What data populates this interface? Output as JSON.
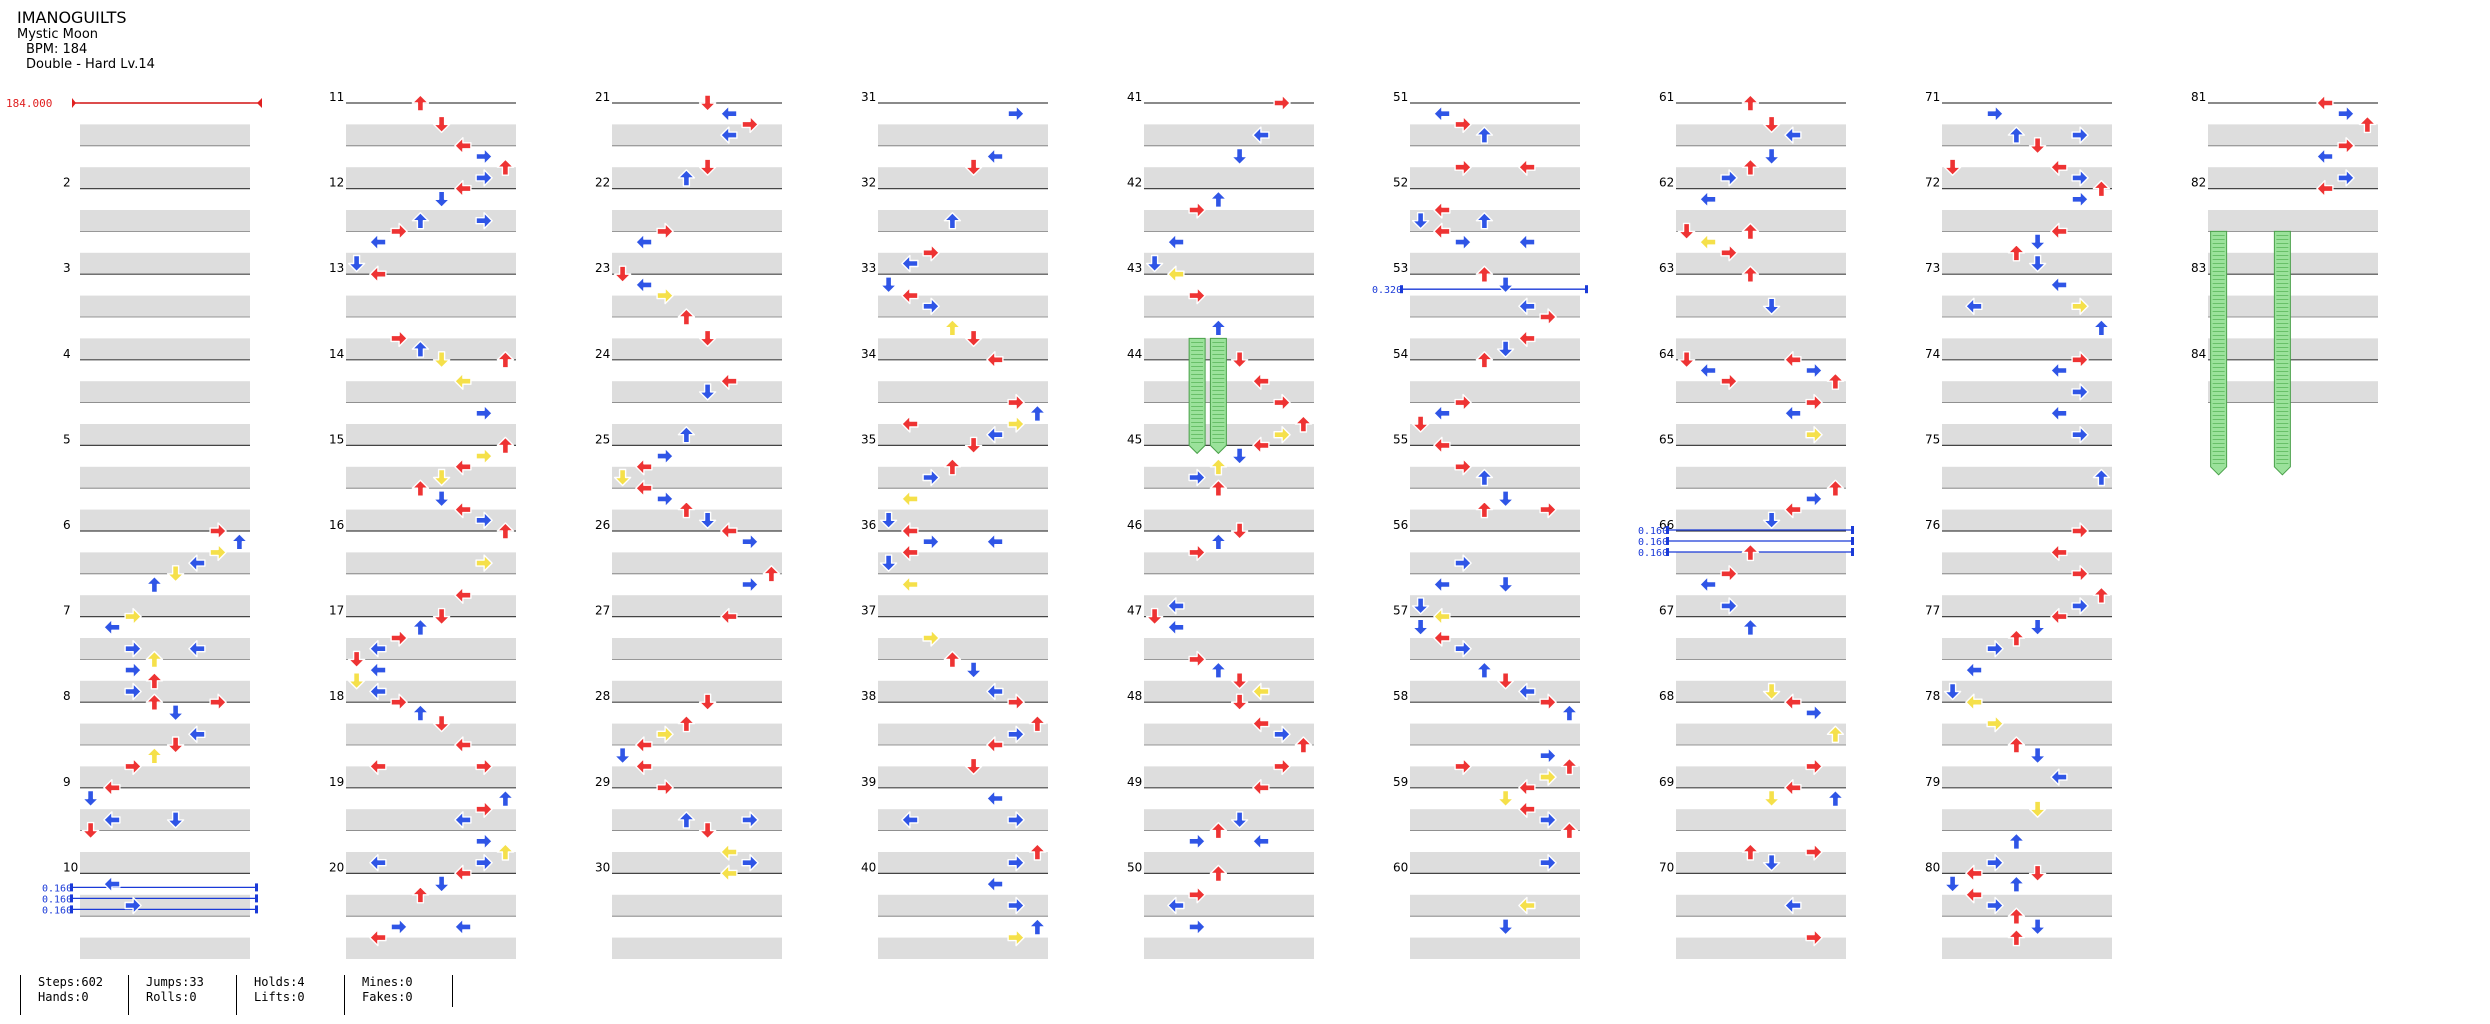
{
  "song": {
    "title": "IMANOGUILTS",
    "subtitle": "Mystic Moon",
    "bpm_text": "BPM: 184",
    "difficulty_text": "Double - Hard  Lv.14"
  },
  "measure_numbers": [
    "",
    "2",
    "3",
    "4",
    "5",
    "6",
    "7",
    "8",
    "9",
    "10",
    "11",
    "12",
    "13",
    "14",
    "15",
    "16",
    "17",
    "18",
    "19",
    "20",
    "21",
    "22",
    "23",
    "24",
    "25",
    "26",
    "27",
    "28",
    "29",
    "30",
    "31",
    "32",
    "33",
    "34",
    "35",
    "36",
    "37",
    "38",
    "39",
    "40",
    "41",
    "42",
    "43",
    "44",
    "45",
    "46",
    "47",
    "48",
    "49",
    "50",
    "51",
    "52",
    "53",
    "54",
    "55",
    "56",
    "57",
    "58",
    "59",
    "60",
    "61",
    "62",
    "63",
    "64",
    "65",
    "66",
    "67",
    "68",
    "69",
    "70",
    "71",
    "72",
    "73",
    "74",
    "75",
    "76",
    "77",
    "78",
    "79",
    "80",
    "81",
    "82",
    "83",
    "84"
  ],
  "speed_labels": {
    "start_bpm": "184.000",
    "stop_160": "0.160",
    "stop_320": "0.320"
  },
  "colors": {
    "red": "#ee3333",
    "blue": "#2f55e6",
    "yellow": "#f5e04a",
    "hold_green": "#9be29b",
    "bpm_red": "#e02020",
    "stop_blue": "#1a3ad8",
    "band_gray": "#dddddd"
  },
  "footer": {
    "blocks": [
      {
        "l1": "Steps:602",
        "l2": "Hands:0"
      },
      {
        "l1": "Jumps:33",
        "l2": "Rolls:0"
      },
      {
        "l1": "Holds:4",
        "l2": "Lifts:0"
      },
      {
        "l1": "Mines:0",
        "l2": "Fakes:0"
      }
    ]
  }
}
